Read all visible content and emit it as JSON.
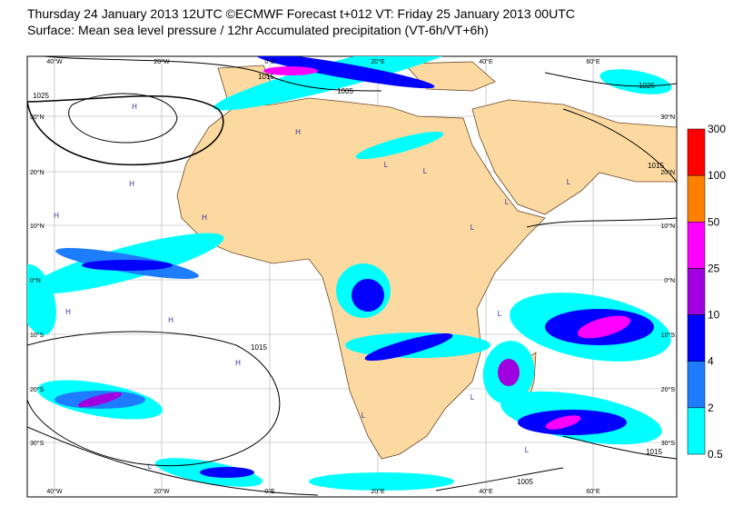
{
  "header": {
    "title": "Thursday 24 January 2013 12UTC ©ECMWF Forecast t+012 VT: Friday 25 January 2013 00UTC",
    "subtitle": "Surface: Mean sea level pressure / 12hr Accumulated precipitation (VT-6h/VT+6h)"
  },
  "map": {
    "lon_labels": [
      "40°W",
      "20°W",
      "0°E",
      "20°E",
      "40°E",
      "60°E"
    ],
    "lat_labels": [
      "30°N",
      "20°N",
      "10°N",
      "0°N",
      "10°S",
      "20°S",
      "30°S"
    ],
    "isobar_labels": [
      1025,
      1015,
      1005,
      1025,
      1015,
      1015,
      1015,
      1005
    ],
    "centers": [
      "H",
      "H",
      "H",
      "H",
      "H",
      "H",
      "H",
      "H",
      "L",
      "L",
      "L",
      "L",
      "L",
      "L",
      "L",
      "L",
      "L",
      "L"
    ]
  },
  "colorbar": {
    "levels": [
      300,
      100,
      50,
      25,
      10,
      4,
      2,
      0.5
    ],
    "colors": [
      "#ff0000",
      "#ff8000",
      "#ff00ff",
      "#a000e0",
      "#0000ff",
      "#1e7dff",
      "#00ffff"
    ]
  }
}
